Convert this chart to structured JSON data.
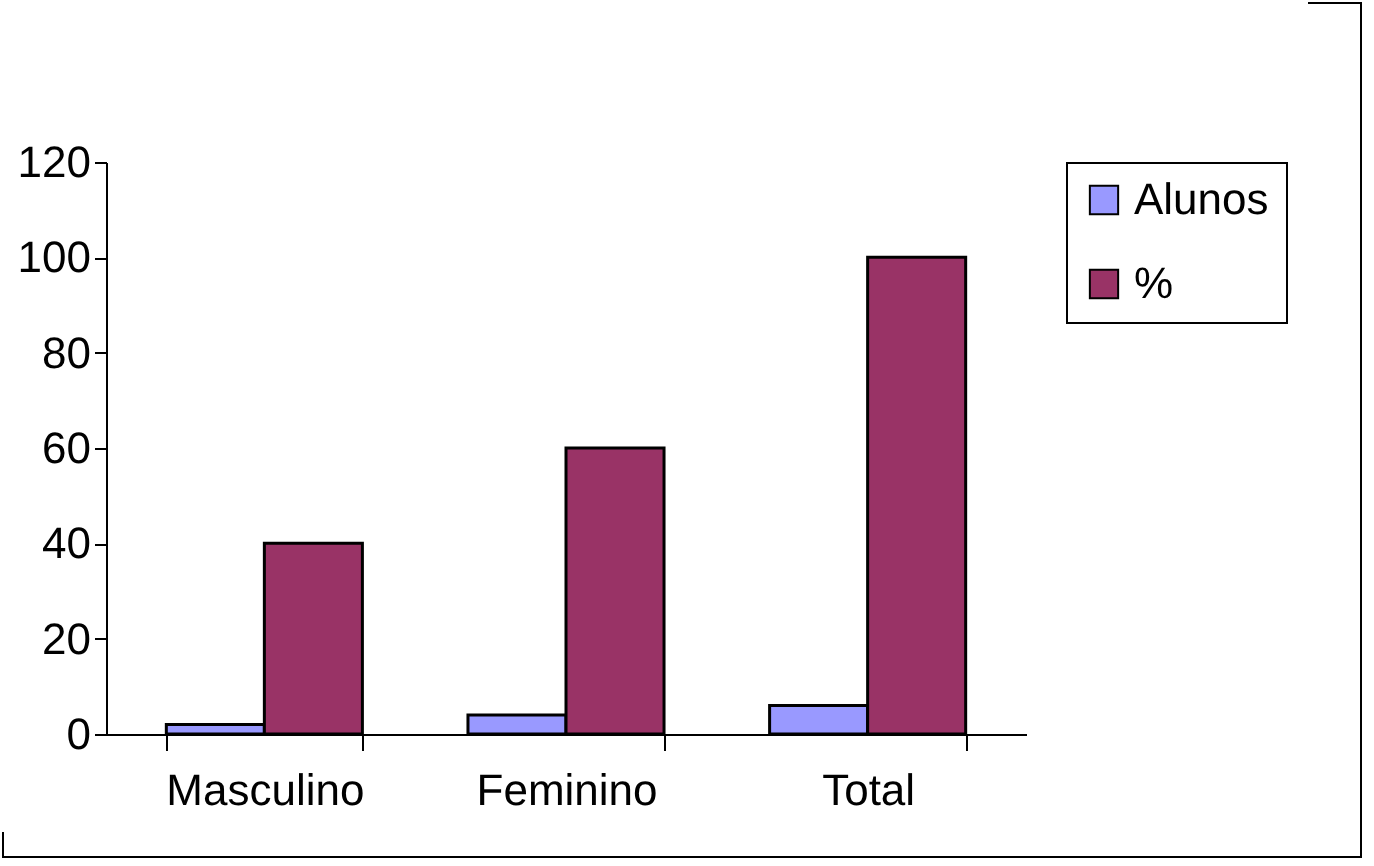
{
  "chart_data": {
    "type": "bar",
    "categories": [
      "Masculino",
      "Feminino",
      "Total"
    ],
    "series": [
      {
        "name": "Alunos",
        "color": "#9999ff",
        "values": [
          2,
          4,
          6
        ]
      },
      {
        "name": "%",
        "color": "#993366",
        "values": [
          40,
          60,
          100
        ]
      }
    ],
    "ylim": [
      0,
      120
    ],
    "yticks": [
      0,
      20,
      40,
      60,
      80,
      100,
      120
    ],
    "grid": false,
    "legend": "right"
  }
}
